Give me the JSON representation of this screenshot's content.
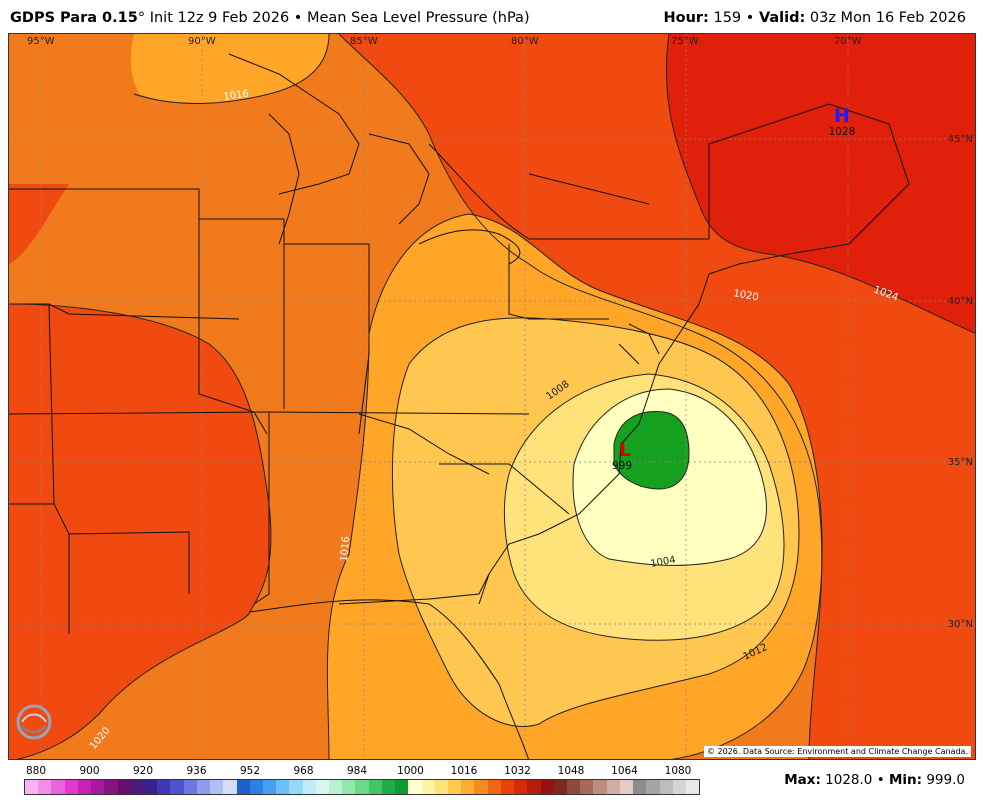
{
  "header": {
    "model": "GDPS Para 0.15",
    "degree": "°",
    "init": "Init 12z 9 Feb 2026",
    "bullet": "•",
    "product": "Mean Sea Level Pressure (hPa)",
    "hour_label": "Hour:",
    "hour_value": "159",
    "valid_label": "Valid:",
    "valid_value": "03z Mon 16 Feb 2026"
  },
  "longitudes": [
    "95°W",
    "90°W",
    "85°W",
    "80°W",
    "75°W",
    "70°W"
  ],
  "latitudes": [
    "45°N",
    "40°N",
    "35°N",
    "30°N"
  ],
  "contours": [
    "1016",
    "1020",
    "1024",
    "1008",
    "1004",
    "1012",
    "1016",
    "1020"
  ],
  "pressure_centers": {
    "high": {
      "symbol": "H",
      "value": "1028",
      "color": "#1a1aff"
    },
    "low": {
      "symbol": "L",
      "value": "999",
      "color": "#e00000"
    }
  },
  "copyright": "© 2026. Data Source: Environment and Climate Change Canada.",
  "logo_text": "WEATHERBELL",
  "colorbar": {
    "labels": [
      "880",
      "900",
      "920",
      "936",
      "952",
      "968",
      "984",
      "1000",
      "1016",
      "1032",
      "1048",
      "1064",
      "1080"
    ],
    "colors": [
      "#f7b4f2",
      "#f28ee8",
      "#ea62dc",
      "#e03acd",
      "#c81fb8",
      "#a8189d",
      "#86137f",
      "#66106a",
      "#4b1d7a",
      "#3a1f8e",
      "#3f37b3",
      "#4c55cc",
      "#6a78df",
      "#8d9ced",
      "#b2bff5",
      "#d4dcfa",
      "#1f5fc9",
      "#2f7fe0",
      "#46a0ee",
      "#6cc0f5",
      "#95d8f7",
      "#c0ecf9",
      "#d8f6ee",
      "#b9f0cf",
      "#95e6ad",
      "#6dd88a",
      "#43c469",
      "#1fad49",
      "#0f9a30",
      "#ffffd0",
      "#fff3a6",
      "#ffe27a",
      "#ffca50",
      "#ffac30",
      "#f58a1e",
      "#ef6614",
      "#e6420c",
      "#d42a0a",
      "#b81c0c",
      "#951410",
      "#7c2a1e",
      "#8e4a3c",
      "#a66a5c",
      "#bd8d80",
      "#d2ada4",
      "#e3cbc6",
      "#8c8c8c",
      "#a4a4a4",
      "#bdbdbd",
      "#d4d4d4",
      "#e8e8e8"
    ]
  },
  "stats": {
    "max_label": "Max:",
    "max_value": "1028.0",
    "min_label": "Min:",
    "min_value": "999.0",
    "bullet": "•"
  }
}
